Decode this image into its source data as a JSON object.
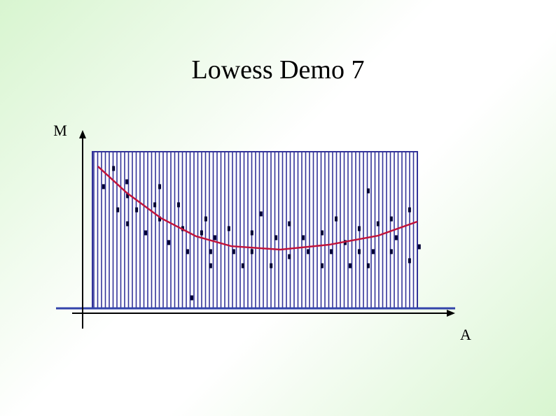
{
  "chart_data": {
    "type": "scatter",
    "title": "Lowess Demo 7",
    "x_label": "A",
    "y_label": "M",
    "xlim": [
      0,
      100
    ],
    "ylim": [
      0,
      100
    ],
    "series": [
      {
        "type": "scatter",
        "color": "#000033",
        "x": [
          3.4,
          6.5,
          7.8,
          10.6,
          10.8,
          10.8,
          13.6,
          16.4,
          19.2,
          20.7,
          20.7,
          23.5,
          26.5,
          27.8,
          29.3,
          30.6,
          33.6,
          34.9,
          36.4,
          36.4,
          37.7,
          42.0,
          43.5,
          46.3,
          49.1,
          49.1,
          51.9,
          55.0,
          56.5,
          60.6,
          60.6,
          64.9,
          66.4,
          70.7,
          70.7,
          73.5,
          75.0,
          77.8,
          79.3,
          82.1,
          82.1,
          84.9,
          84.9,
          86.4,
          87.9,
          92.0,
          92.0,
          93.5,
          97.6,
          97.6,
          100.6
        ],
        "y": [
          77.7,
          89.3,
          62.9,
          80.8,
          54.0,
          71.9,
          62.9,
          48.2,
          66.1,
          77.7,
          57.1,
          42.0,
          66.1,
          50.9,
          36.2,
          6.7,
          48.2,
          57.1,
          36.2,
          27.2,
          45.1,
          50.9,
          36.2,
          27.2,
          48.2,
          36.2,
          60.3,
          27.2,
          45.1,
          54.0,
          33.0,
          45.1,
          36.2,
          48.2,
          27.2,
          36.2,
          57.1,
          42.0,
          27.2,
          50.9,
          36.2,
          75.0,
          27.2,
          36.2,
          54.0,
          57.1,
          36.2,
          45.1,
          62.9,
          30.4,
          39.3
        ]
      },
      {
        "type": "line",
        "color": "#c0143c",
        "x": [
          1.7,
          10.6,
          21.1,
          31.9,
          42.7,
          57.8,
          72.8,
          87.9,
          100
        ],
        "y": [
          90.6,
          73.7,
          57.6,
          46.0,
          39.7,
          37.5,
          40.6,
          46.4,
          55.4
        ]
      }
    ]
  }
}
